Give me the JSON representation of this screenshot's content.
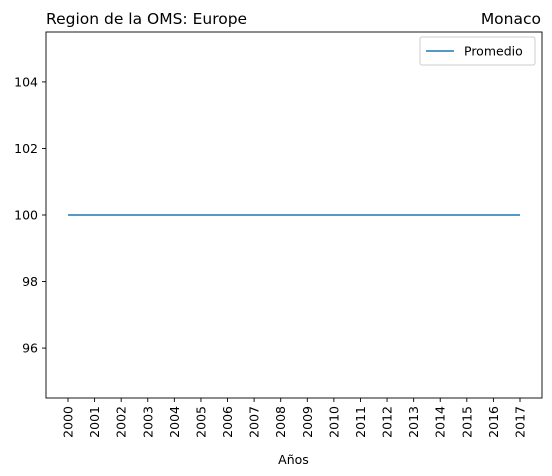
{
  "chart_data": {
    "type": "line",
    "title_left": "Region de la OMS: Europe",
    "title_right": "Monaco",
    "xlabel": "Años",
    "ylabel": "",
    "x": [
      "2000",
      "2001",
      "2002",
      "2003",
      "2004",
      "2005",
      "2006",
      "2007",
      "2008",
      "2009",
      "2010",
      "2011",
      "2012",
      "2013",
      "2014",
      "2015",
      "2016",
      "2017"
    ],
    "series": [
      {
        "name": "Promedio",
        "values": [
          100,
          100,
          100,
          100,
          100,
          100,
          100,
          100,
          100,
          100,
          100,
          100,
          100,
          100,
          100,
          100,
          100,
          100
        ],
        "color": "#1f77b4"
      }
    ],
    "ylim": [
      94.5,
      105.5
    ],
    "yticks": [
      96,
      98,
      100,
      102,
      104
    ],
    "grid": false,
    "legend": "top-right"
  }
}
